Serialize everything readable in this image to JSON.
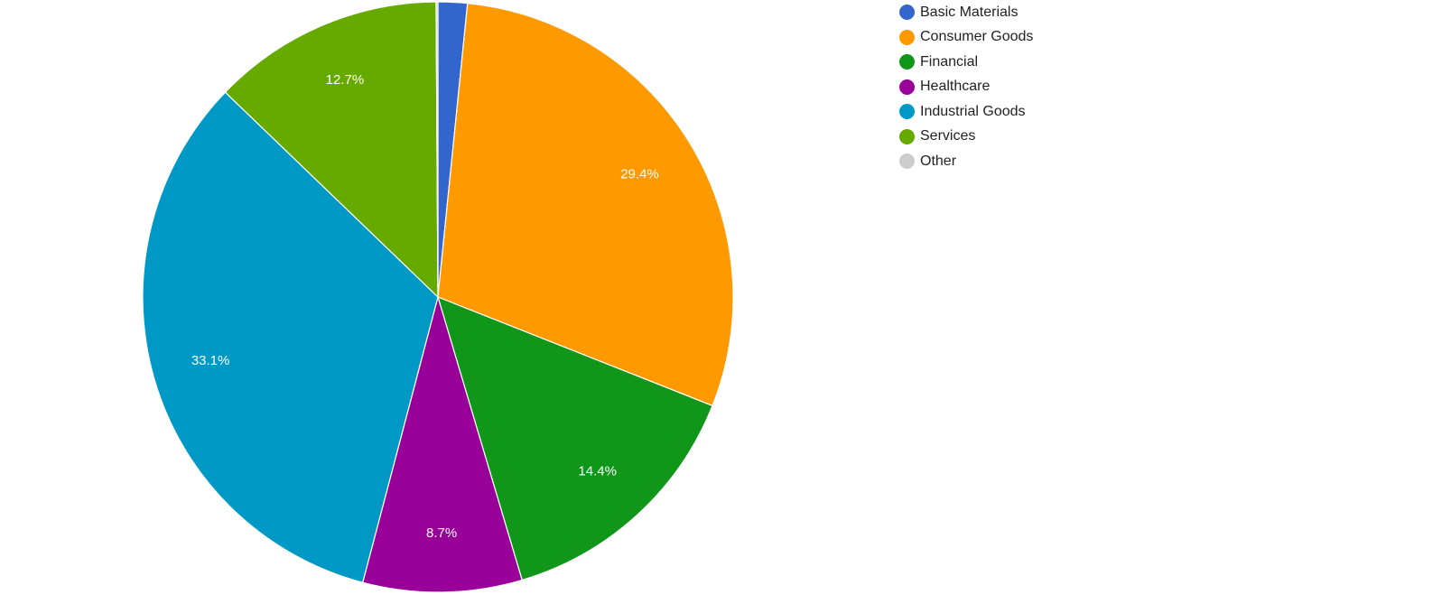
{
  "chart_data": {
    "type": "pie",
    "title": "",
    "start_angle": 0,
    "direction": "clockwise",
    "legend_position": "top-right",
    "slices": [
      {
        "label": "Basic Materials",
        "value": 1.6,
        "display": "",
        "color": "#3366cc"
      },
      {
        "label": "Consumer Goods",
        "value": 29.4,
        "display": "29.4%",
        "color": "#ff9900"
      },
      {
        "label": "Financial",
        "value": 14.4,
        "display": "14.4%",
        "color": "#109618"
      },
      {
        "label": "Healthcare",
        "value": 8.7,
        "display": "8.7%",
        "color": "#990099"
      },
      {
        "label": "Industrial Goods",
        "value": 33.1,
        "display": "33.1%",
        "color": "#0099c6"
      },
      {
        "label": "Services",
        "value": 12.7,
        "display": "12.7%",
        "color": "#66aa00"
      },
      {
        "label": "Other",
        "value": 0.1,
        "display": "",
        "color": "#cccccc"
      }
    ]
  }
}
